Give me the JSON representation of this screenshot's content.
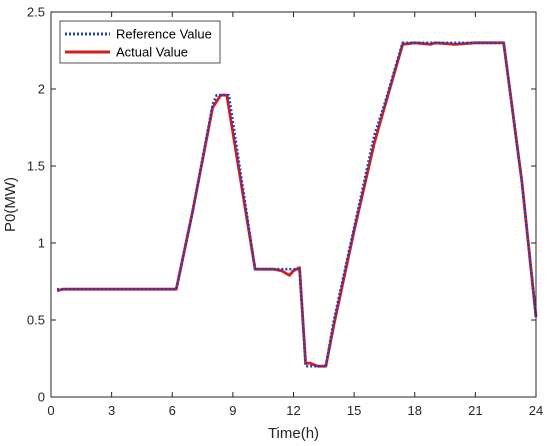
{
  "chart_data": {
    "type": "line",
    "xlabel": "Time(h)",
    "ylabel": "P0(MW)",
    "xlim": [
      0,
      24
    ],
    "ylim": [
      0,
      2.5
    ],
    "xticks": [
      0,
      3,
      6,
      9,
      12,
      15,
      18,
      21,
      24
    ],
    "yticks": [
      0,
      0.5,
      1,
      1.5,
      2,
      2.5
    ],
    "xtick_labels": [
      "0",
      "3",
      "6",
      "9",
      "12",
      "15",
      "18",
      "21",
      "24"
    ],
    "ytick_labels": [
      "0",
      "0.5",
      "1",
      "1.5",
      "2",
      "2.5"
    ],
    "grid": false,
    "legend_position": "top-left",
    "series": [
      {
        "name": "Reference Value",
        "color": "#1f3fbf",
        "style": "dotted",
        "x": [
          0.3,
          0.6,
          1,
          2,
          3,
          4,
          5,
          6.2,
          7,
          8,
          8.2,
          8.8,
          10.1,
          10.5,
          11,
          11.4,
          11.8,
          12,
          12.3,
          12.6,
          12.8,
          13.6,
          14,
          15,
          16,
          16.5,
          17.4,
          18,
          19,
          20,
          21,
          22.4,
          23.3,
          24
        ],
        "y": [
          0.7,
          0.7,
          0.7,
          0.7,
          0.7,
          0.7,
          0.7,
          0.7,
          1.2,
          1.9,
          1.96,
          1.96,
          0.83,
          0.83,
          0.83,
          0.83,
          0.83,
          0.83,
          0.83,
          0.2,
          0.2,
          0.2,
          0.5,
          1.1,
          1.7,
          1.9,
          2.3,
          2.3,
          2.3,
          2.3,
          2.3,
          2.3,
          1.4,
          0.52
        ]
      },
      {
        "name": "Actual Value",
        "color": "#d41c1c",
        "style": "solid",
        "x": [
          0.3,
          0.6,
          1,
          2,
          3,
          4,
          5,
          6.2,
          7,
          8,
          8.4,
          8.7,
          10.1,
          10.5,
          11,
          11.4,
          11.8,
          12,
          12.3,
          12.6,
          12.8,
          13.2,
          13.6,
          14,
          15,
          16,
          16.5,
          17.4,
          18,
          18.8,
          19,
          20,
          21,
          22.4,
          23.3,
          24
        ],
        "y": [
          0.69,
          0.7,
          0.7,
          0.7,
          0.7,
          0.7,
          0.7,
          0.7,
          1.2,
          1.88,
          1.96,
          1.96,
          0.83,
          0.83,
          0.83,
          0.82,
          0.79,
          0.82,
          0.84,
          0.22,
          0.22,
          0.2,
          0.2,
          0.47,
          1.08,
          1.65,
          1.88,
          2.29,
          2.3,
          2.29,
          2.3,
          2.29,
          2.3,
          2.3,
          1.4,
          0.52
        ]
      }
    ]
  }
}
